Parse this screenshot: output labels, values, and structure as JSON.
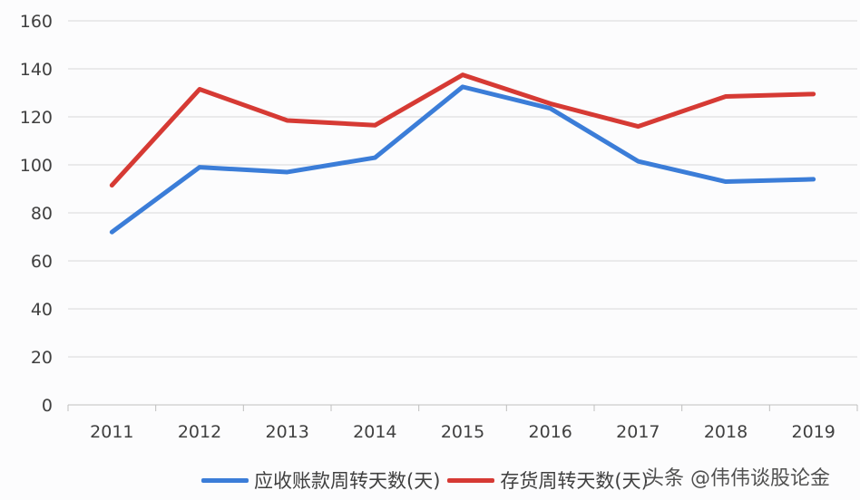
{
  "chart_data": {
    "type": "line",
    "title": "",
    "xlabel": "",
    "ylabel": "",
    "categories": [
      "2011",
      "2012",
      "2013",
      "2014",
      "2015",
      "2016",
      "2017",
      "2018",
      "2019"
    ],
    "ylim": [
      0,
      160
    ],
    "yticks": [
      0,
      20,
      40,
      60,
      80,
      100,
      120,
      140,
      160
    ],
    "grid": true,
    "legend_position": "bottom",
    "series": [
      {
        "name": "应收账款周转天数(天)",
        "color": "#3b7dd8",
        "values": [
          72,
          99,
          97,
          103,
          132.5,
          123.5,
          101.5,
          93,
          94
        ]
      },
      {
        "name": "存货周转天数(天)",
        "color": "#d63a34",
        "values": [
          91.5,
          131.5,
          118.5,
          116.5,
          137.5,
          125.5,
          116,
          128.5,
          129.5
        ]
      }
    ]
  },
  "watermark": "头条 @伟伟谈股论金"
}
